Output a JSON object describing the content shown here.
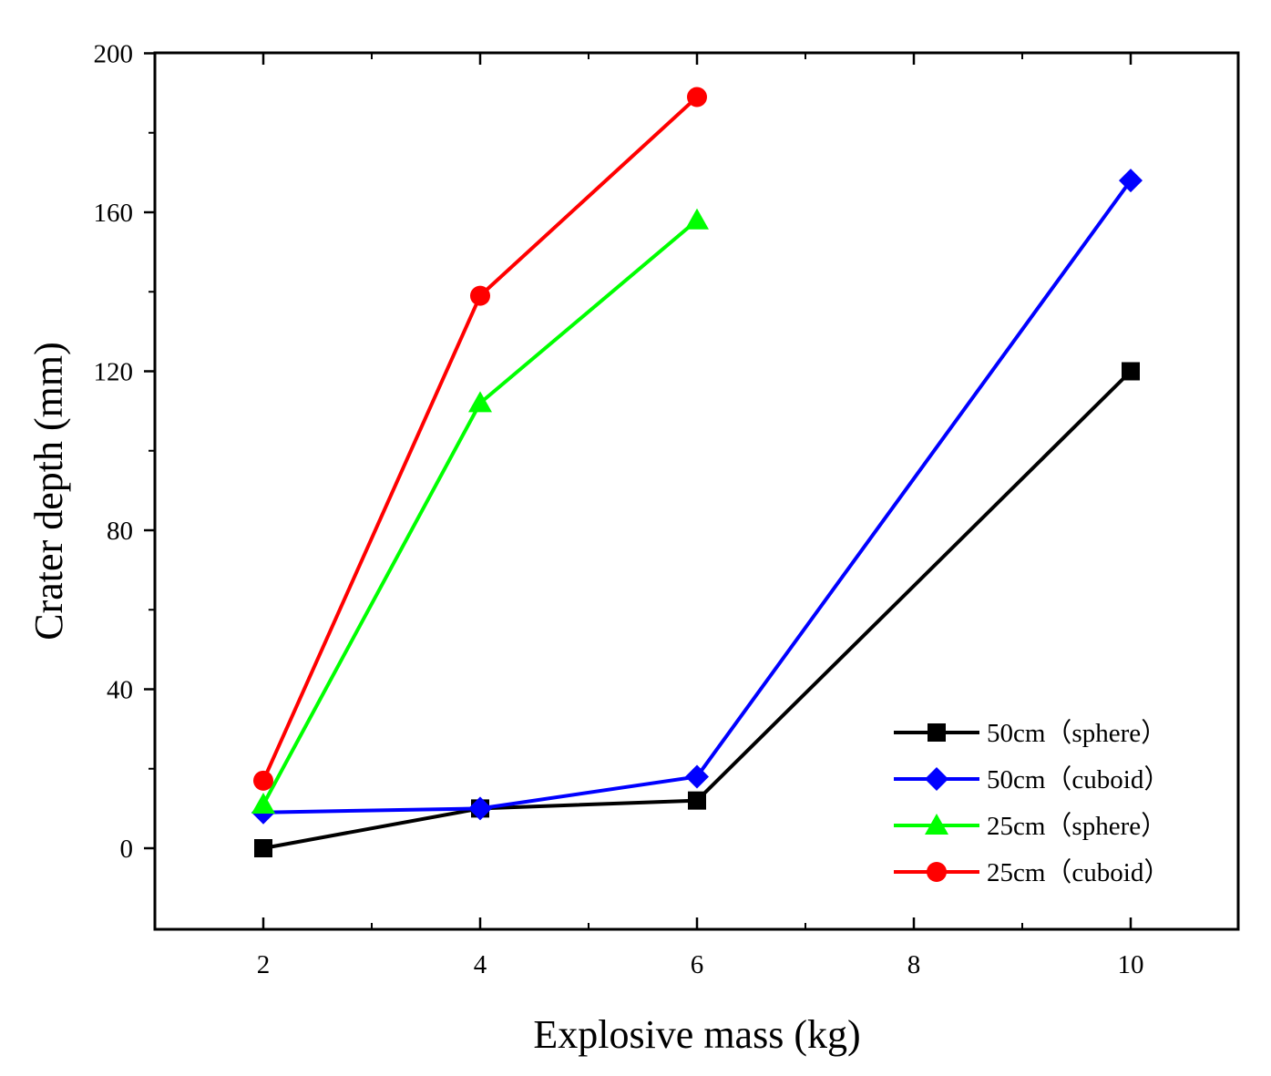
{
  "chart_data": {
    "type": "line",
    "xlabel": "Explosive mass (kg)",
    "ylabel": "Crater depth (mm)",
    "xlim": [
      1,
      11
    ],
    "ylim": [
      -20,
      200
    ],
    "x_ticks": [
      2,
      4,
      6,
      8,
      10
    ],
    "x_minor_ticks": [
      3,
      5,
      7,
      9
    ],
    "y_ticks": [
      0,
      40,
      80,
      120,
      160,
      200
    ],
    "y_minor_ticks": [
      20,
      60,
      100,
      140,
      180
    ],
    "legend_position": "bottom-right",
    "series": [
      {
        "name": "50cm（sphere）",
        "color": "#000000",
        "marker": "square",
        "x": [
          2,
          4,
          6,
          10
        ],
        "values": [
          0,
          10,
          12,
          120
        ]
      },
      {
        "name": "50cm（cuboid）",
        "color": "#0000ff",
        "marker": "diamond",
        "x": [
          2,
          4,
          6,
          10
        ],
        "values": [
          9,
          10,
          18,
          168
        ]
      },
      {
        "name": "25cm（sphere）",
        "color": "#00ff00",
        "marker": "triangle",
        "x": [
          2,
          4,
          6
        ],
        "values": [
          11,
          112,
          158
        ]
      },
      {
        "name": "25cm（cuboid）",
        "color": "#ff0000",
        "marker": "circle",
        "x": [
          2,
          4,
          6
        ],
        "values": [
          17,
          139,
          189
        ]
      }
    ]
  }
}
